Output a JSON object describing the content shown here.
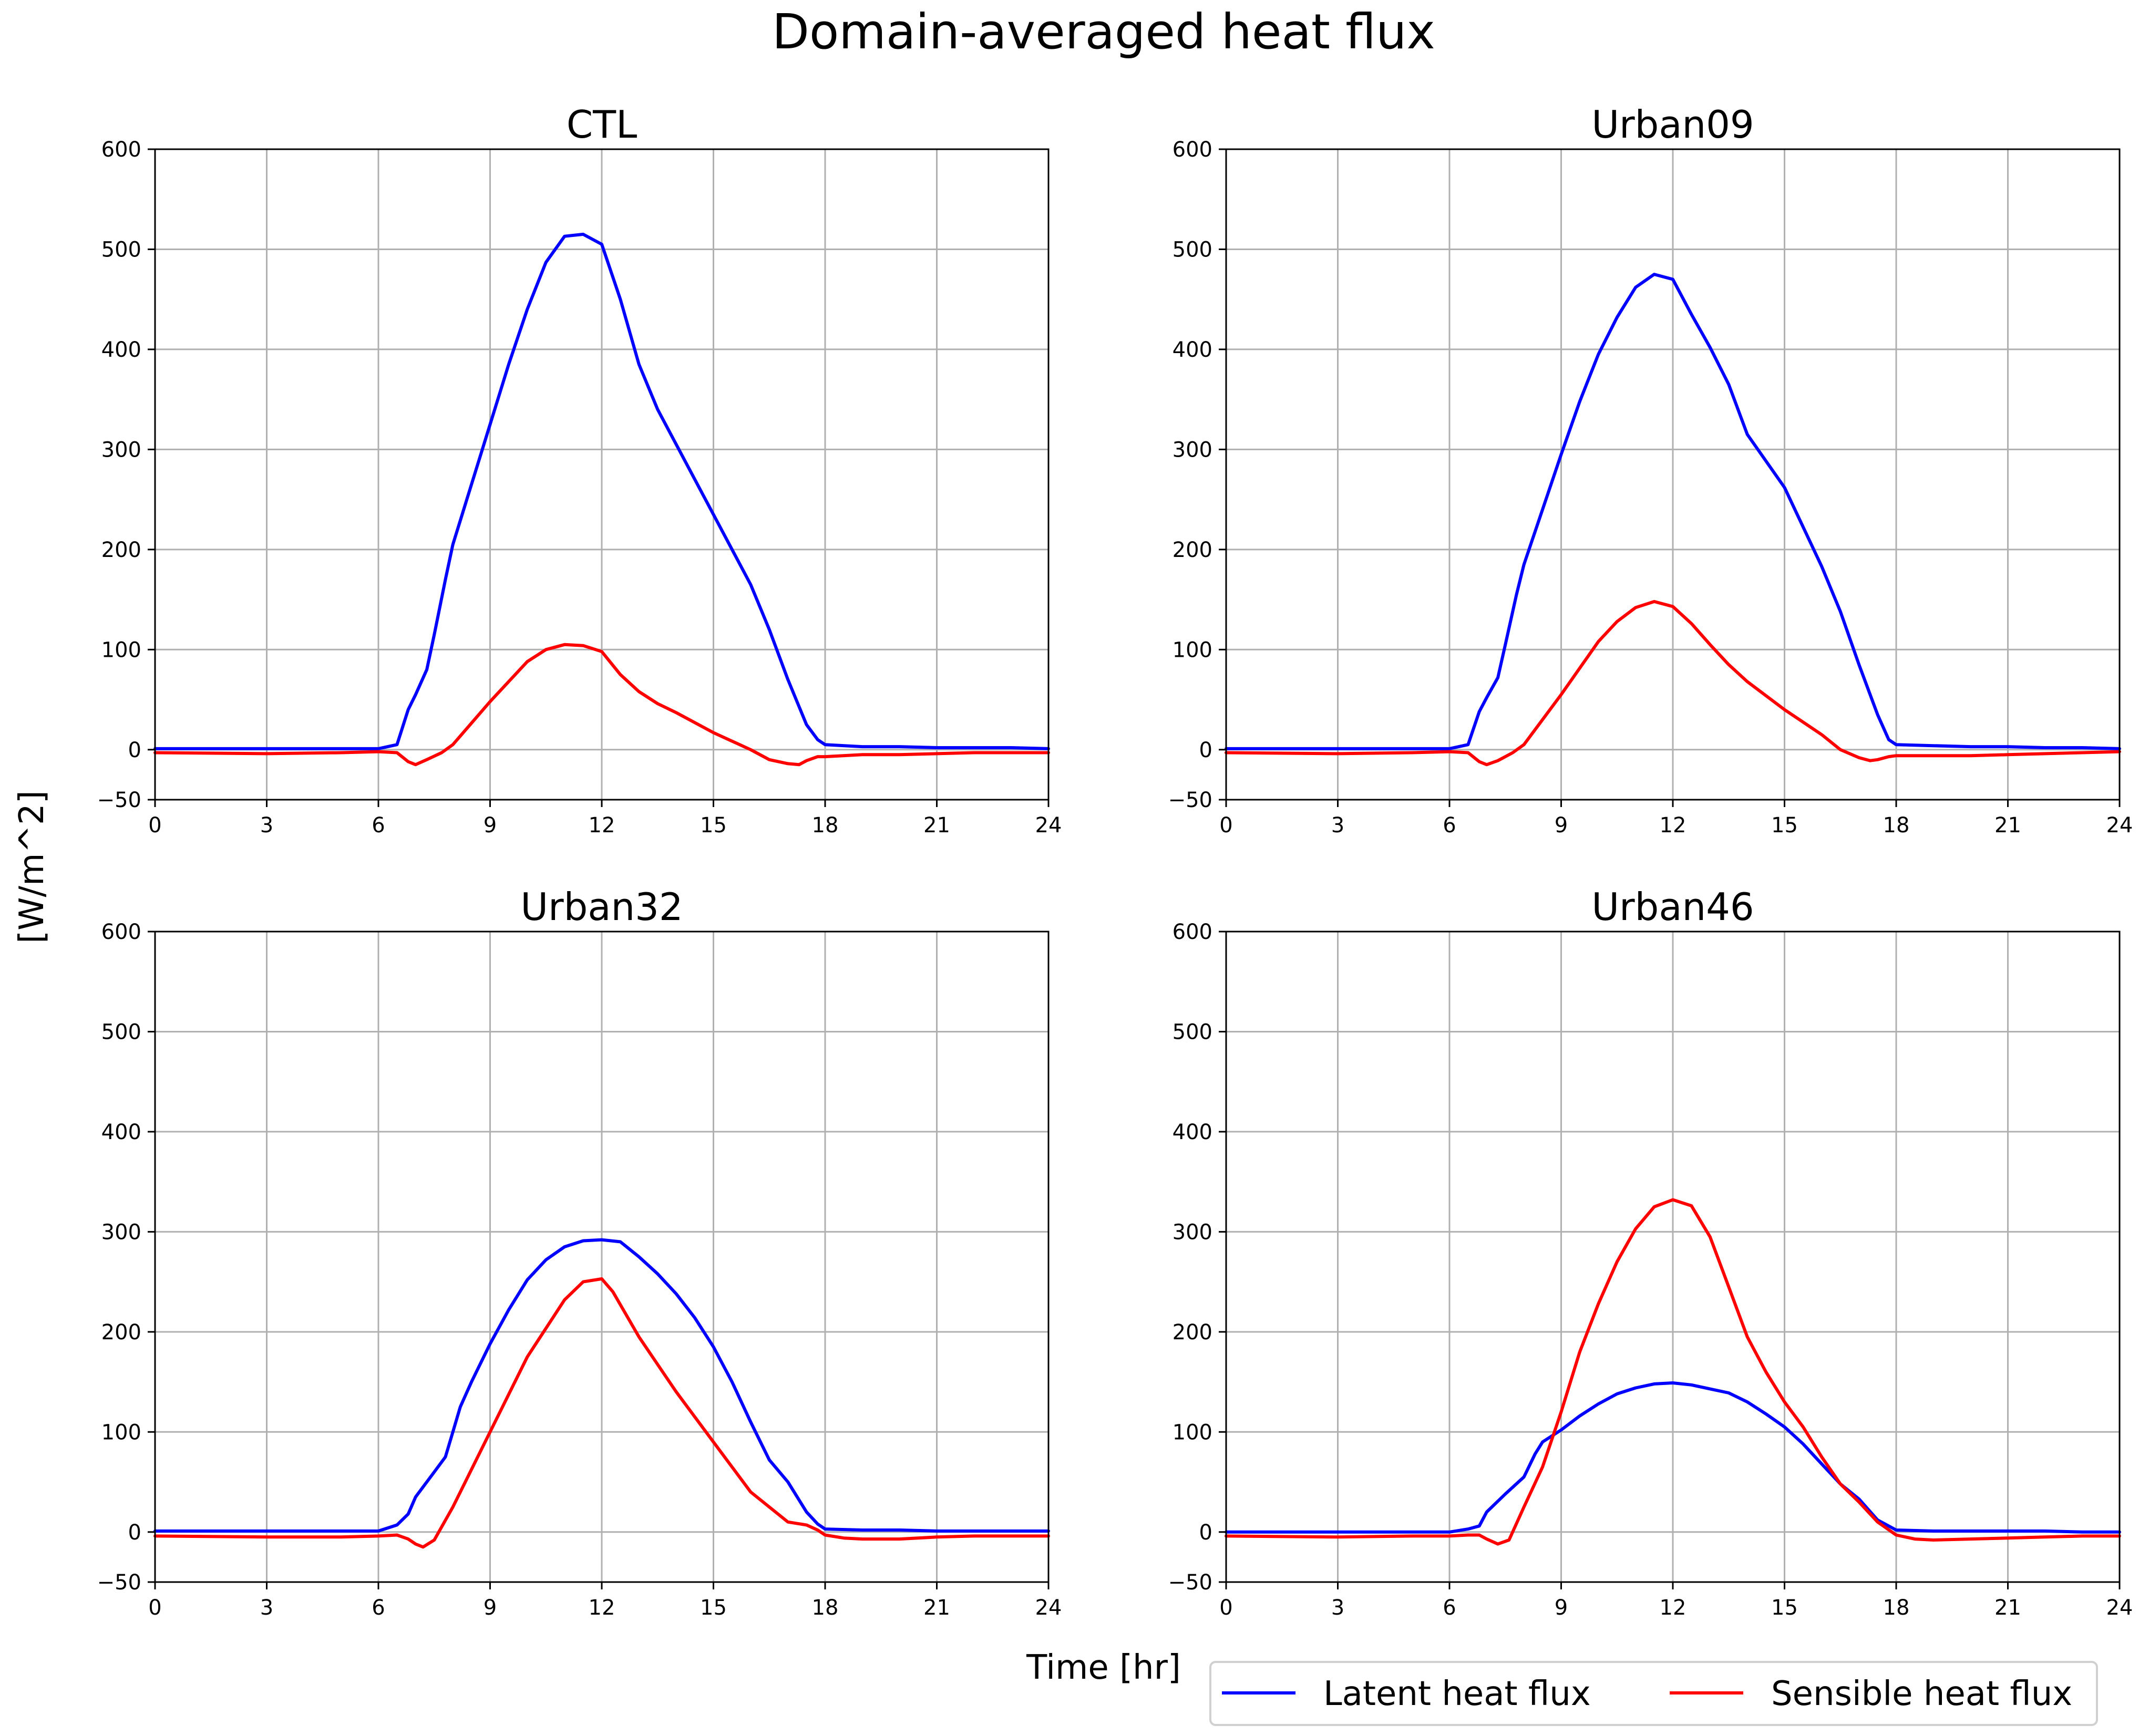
{
  "figure": {
    "title": "Domain-averaged heat flux",
    "ylabel": "[W/m^2]",
    "xlabel": "Time [hr]"
  },
  "legend": {
    "placement": "bottom-right, below panels",
    "entries": [
      {
        "label": "Latent heat flux",
        "color": "#0000ff"
      },
      {
        "label": "Sensible heat flux",
        "color": "#ff0000"
      }
    ]
  },
  "chart_data": [
    {
      "type": "line",
      "title": "CTL",
      "xlim": [
        0,
        24
      ],
      "ylim": [
        -50,
        600
      ],
      "xticks": [
        "0",
        "3",
        "6",
        "9",
        "12",
        "15",
        "18",
        "21",
        "24"
      ],
      "yticks": [
        "-50",
        "0",
        "100",
        "200",
        "300",
        "400",
        "500",
        "600"
      ],
      "grid": true,
      "series": [
        {
          "name": "Latent heat flux",
          "color": "#0000ff",
          "x": [
            0,
            3,
            6,
            6.5,
            6.8,
            7,
            7.3,
            7.5,
            7.8,
            8,
            8.5,
            9,
            9.5,
            10,
            10.5,
            11,
            11.5,
            12,
            12.5,
            13,
            13.5,
            14,
            15,
            16,
            16.5,
            17,
            17.5,
            17.8,
            18,
            19,
            20,
            21,
            22,
            23,
            24
          ],
          "y": [
            1,
            1,
            1,
            5,
            40,
            55,
            80,
            115,
            170,
            205,
            265,
            325,
            385,
            440,
            487,
            513,
            515,
            505,
            450,
            385,
            340,
            305,
            235,
            165,
            120,
            70,
            25,
            10,
            5,
            3,
            3,
            2,
            2,
            2,
            1
          ]
        },
        {
          "name": "Sensible heat flux",
          "color": "#ff0000",
          "x": [
            0,
            3,
            5,
            6,
            6.5,
            6.8,
            7,
            7.3,
            7.7,
            8,
            9,
            10,
            10.5,
            11,
            11.5,
            12,
            12.5,
            13,
            13.5,
            14,
            15,
            16,
            16.5,
            17,
            17.3,
            17.5,
            17.8,
            18,
            19,
            20,
            21,
            22,
            23,
            24
          ],
          "y": [
            -3,
            -4,
            -3,
            -2,
            -3,
            -12,
            -15,
            -10,
            -3,
            5,
            48,
            88,
            100,
            105,
            104,
            98,
            75,
            58,
            46,
            37,
            17,
            0,
            -10,
            -14,
            -15,
            -11,
            -7,
            -7,
            -5,
            -5,
            -4,
            -3,
            -3,
            -3
          ]
        }
      ]
    },
    {
      "type": "line",
      "title": "Urban09",
      "xlim": [
        0,
        24
      ],
      "ylim": [
        -50,
        600
      ],
      "xticks": [
        "0",
        "3",
        "6",
        "9",
        "12",
        "15",
        "18",
        "21",
        "24"
      ],
      "yticks": [
        "-50",
        "0",
        "100",
        "200",
        "300",
        "400",
        "500",
        "600"
      ],
      "grid": true,
      "series": [
        {
          "name": "Latent heat flux",
          "color": "#0000ff",
          "x": [
            0,
            3,
            6,
            6.5,
            6.8,
            7,
            7.3,
            7.5,
            7.8,
            8,
            8.5,
            9,
            9.5,
            10,
            10.5,
            11,
            11.5,
            12,
            12.5,
            13,
            13.5,
            14,
            15,
            16,
            16.5,
            17,
            17.5,
            17.8,
            18,
            19,
            20,
            21,
            22,
            23,
            24
          ],
          "y": [
            1,
            1,
            1,
            5,
            38,
            52,
            72,
            105,
            155,
            185,
            240,
            295,
            348,
            395,
            432,
            462,
            475,
            470,
            435,
            402,
            365,
            315,
            262,
            183,
            138,
            85,
            35,
            10,
            5,
            4,
            3,
            3,
            2,
            2,
            1
          ]
        },
        {
          "name": "Sensible heat flux",
          "color": "#ff0000",
          "x": [
            0,
            3,
            5,
            6,
            6.5,
            6.8,
            7,
            7.3,
            7.7,
            8,
            9,
            10,
            10.5,
            11,
            11.5,
            12,
            12.5,
            13,
            13.5,
            14,
            15,
            16,
            16.5,
            17,
            17.3,
            17.5,
            17.8,
            18,
            19,
            20,
            21,
            22,
            23,
            24
          ],
          "y": [
            -3,
            -4,
            -3,
            -2,
            -3,
            -12,
            -15,
            -11,
            -3,
            5,
            55,
            108,
            128,
            142,
            148,
            143,
            126,
            105,
            85,
            68,
            40,
            15,
            0,
            -8,
            -11,
            -10,
            -7,
            -6,
            -6,
            -6,
            -5,
            -4,
            -3,
            -2
          ]
        }
      ]
    },
    {
      "type": "line",
      "title": "Urban32",
      "xlim": [
        0,
        24
      ],
      "ylim": [
        -50,
        600
      ],
      "xticks": [
        "0",
        "3",
        "6",
        "9",
        "12",
        "15",
        "18",
        "21",
        "24"
      ],
      "yticks": [
        "-50",
        "0",
        "100",
        "200",
        "300",
        "400",
        "500",
        "600"
      ],
      "grid": true,
      "series": [
        {
          "name": "Latent heat flux",
          "color": "#0000ff",
          "x": [
            0,
            3,
            6,
            6.5,
            6.8,
            7,
            7.3,
            7.5,
            7.8,
            8,
            8.2,
            8.5,
            9,
            9.5,
            10,
            10.5,
            11,
            11.5,
            12,
            12.5,
            13,
            13.5,
            14,
            14.5,
            15,
            15.5,
            16,
            16.5,
            17,
            17.5,
            17.8,
            18,
            19,
            20,
            21,
            22,
            23,
            24
          ],
          "y": [
            1,
            1,
            1,
            7,
            18,
            35,
            50,
            60,
            75,
            100,
            125,
            150,
            188,
            222,
            252,
            272,
            285,
            291,
            292,
            290,
            275,
            258,
            238,
            214,
            185,
            150,
            110,
            72,
            50,
            20,
            8,
            3,
            2,
            2,
            1,
            1,
            1,
            1
          ]
        },
        {
          "name": "Sensible heat flux",
          "color": "#ff0000",
          "x": [
            0,
            3,
            5,
            6,
            6.5,
            6.8,
            7,
            7.2,
            7.5,
            8,
            9,
            10,
            11,
            11.5,
            12,
            12.3,
            13,
            14,
            15,
            16,
            17,
            17.5,
            17.8,
            18,
            18.5,
            19,
            20,
            21,
            22,
            23,
            24
          ],
          "y": [
            -4,
            -5,
            -5,
            -4,
            -3,
            -7,
            -12,
            -15,
            -8,
            25,
            100,
            175,
            232,
            250,
            253,
            240,
            195,
            140,
            90,
            40,
            10,
            7,
            2,
            -3,
            -6,
            -7,
            -7,
            -5,
            -4,
            -4,
            -4
          ]
        }
      ]
    },
    {
      "type": "line",
      "title": "Urban46",
      "xlim": [
        0,
        24
      ],
      "ylim": [
        -50,
        600
      ],
      "xticks": [
        "0",
        "3",
        "6",
        "9",
        "12",
        "15",
        "18",
        "21",
        "24"
      ],
      "yticks": [
        "-50",
        "0",
        "100",
        "200",
        "300",
        "400",
        "500",
        "600"
      ],
      "grid": true,
      "series": [
        {
          "name": "Latent heat flux",
          "color": "#0000ff",
          "x": [
            0,
            3,
            6,
            6.5,
            6.8,
            7,
            7.5,
            8,
            8.3,
            8.5,
            9,
            9.5,
            10,
            10.5,
            11,
            11.5,
            12,
            12.5,
            13,
            13.5,
            14,
            14.5,
            15,
            15.5,
            16,
            16.5,
            17,
            17.5,
            18,
            19,
            20,
            21,
            22,
            23,
            24
          ],
          "y": [
            0,
            0,
            0,
            3,
            6,
            20,
            38,
            55,
            78,
            90,
            102,
            116,
            128,
            138,
            144,
            148,
            149,
            147,
            143,
            139,
            130,
            118,
            105,
            88,
            68,
            48,
            33,
            12,
            2,
            1,
            1,
            1,
            1,
            0,
            0
          ]
        },
        {
          "name": "Sensible heat flux",
          "color": "#ff0000",
          "x": [
            0,
            3,
            5,
            6,
            6.5,
            6.8,
            7,
            7.3,
            7.6,
            8,
            8.5,
            9,
            9.5,
            10,
            10.5,
            11,
            11.5,
            12,
            12.5,
            13,
            13.5,
            14,
            14.5,
            15,
            15.5,
            16,
            16.5,
            17,
            17.5,
            18,
            18.5,
            19,
            20,
            21,
            22,
            23,
            24
          ],
          "y": [
            -4,
            -5,
            -4,
            -4,
            -3,
            -3,
            -7,
            -12,
            -8,
            25,
            65,
            120,
            180,
            228,
            270,
            303,
            325,
            332,
            326,
            295,
            245,
            195,
            160,
            130,
            105,
            75,
            48,
            30,
            10,
            -3,
            -7,
            -8,
            -7,
            -6,
            -5,
            -4,
            -4
          ]
        }
      ]
    }
  ]
}
